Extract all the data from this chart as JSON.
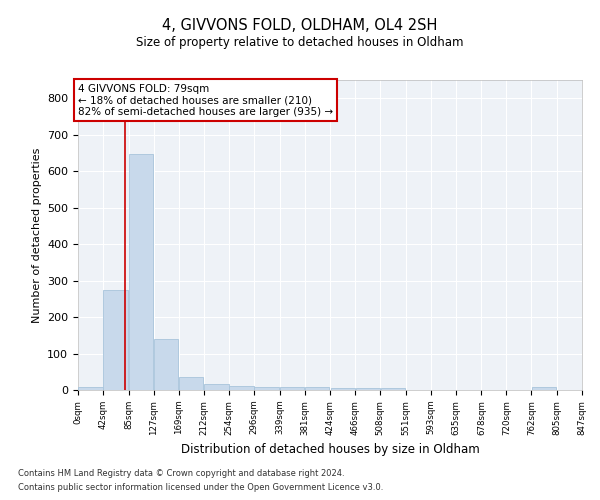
{
  "title": "4, GIVVONS FOLD, OLDHAM, OL4 2SH",
  "subtitle": "Size of property relative to detached houses in Oldham",
  "xlabel": "Distribution of detached houses by size in Oldham",
  "ylabel": "Number of detached properties",
  "bar_color": "#c8d9eb",
  "bar_edgecolor": "#a8c4db",
  "background_color": "#eef2f7",
  "grid_color": "#ffffff",
  "annotation_line1": "4 GIVVONS FOLD: 79sqm",
  "annotation_line2": "← 18% of detached houses are smaller (210)",
  "annotation_line3": "82% of semi-detached houses are larger (935) →",
  "vline_x": 79,
  "vline_color": "#cc0000",
  "bin_edges": [
    0,
    42,
    85,
    127,
    169,
    212,
    254,
    296,
    339,
    381,
    424,
    466,
    508,
    551,
    593,
    635,
    678,
    720,
    762,
    805,
    847
  ],
  "bar_heights": [
    7,
    275,
    648,
    140,
    35,
    17,
    12,
    8,
    8,
    8,
    5,
    5,
    5,
    0,
    0,
    0,
    0,
    0,
    7,
    0,
    0
  ],
  "tick_labels": [
    "0sqm",
    "42sqm",
    "85sqm",
    "127sqm",
    "169sqm",
    "212sqm",
    "254sqm",
    "296sqm",
    "339sqm",
    "381sqm",
    "424sqm",
    "466sqm",
    "508sqm",
    "551sqm",
    "593sqm",
    "635sqm",
    "678sqm",
    "720sqm",
    "762sqm",
    "805sqm",
    "847sqm"
  ],
  "ylim": [
    0,
    850
  ],
  "yticks": [
    0,
    100,
    200,
    300,
    400,
    500,
    600,
    700,
    800
  ],
  "footnote1": "Contains HM Land Registry data © Crown copyright and database right 2024.",
  "footnote2": "Contains public sector information licensed under the Open Government Licence v3.0."
}
